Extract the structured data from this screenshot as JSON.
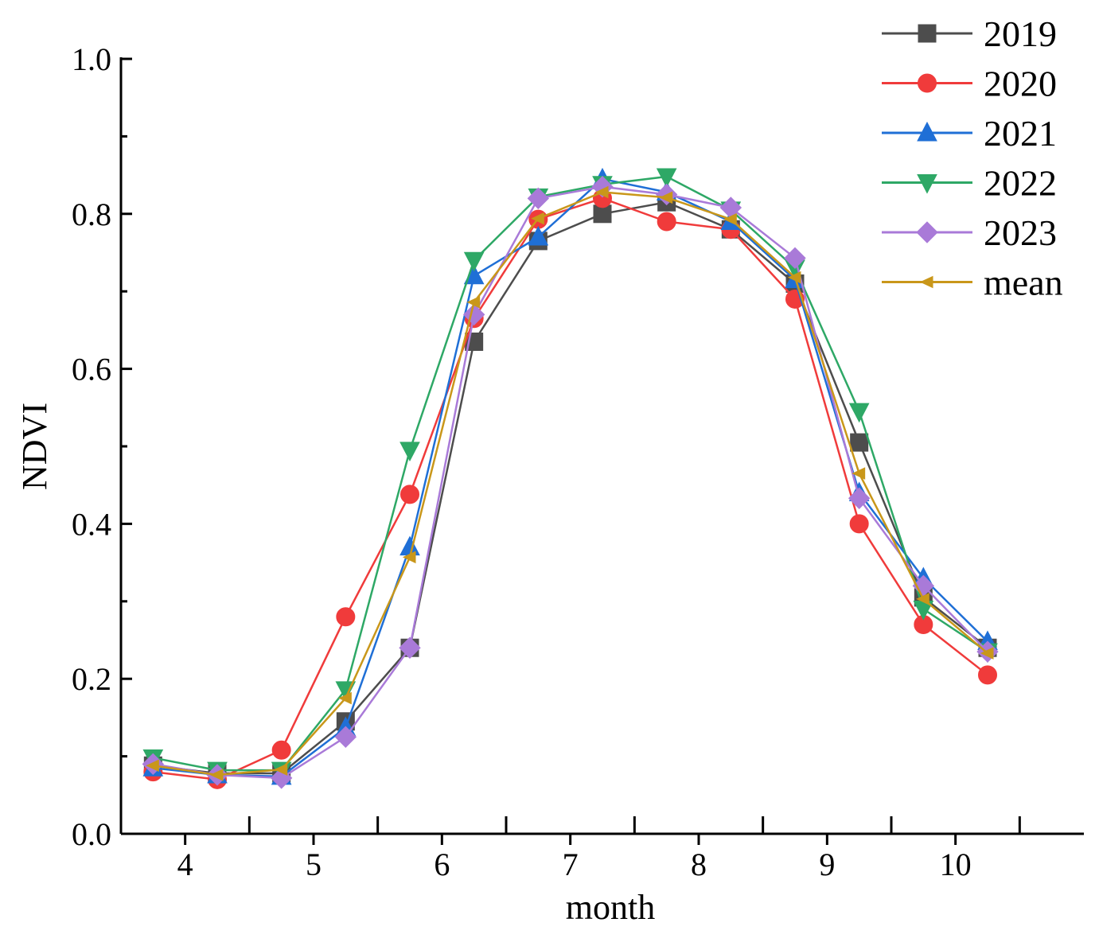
{
  "chart_data": {
    "type": "line",
    "title": "",
    "xlabel": "month",
    "ylabel": "NDVI",
    "xlim": [
      3.5,
      11.0
    ],
    "ylim": [
      0.0,
      1.0
    ],
    "xticks": [
      4,
      5,
      6,
      7,
      8,
      9,
      10
    ],
    "xtick_labels": [
      "4",
      "5",
      "6",
      "7",
      "8",
      "9",
      "10"
    ],
    "yticks": [
      0.0,
      0.2,
      0.4,
      0.6,
      0.8,
      1.0
    ],
    "ytick_labels": [
      "0.0",
      "0.2",
      "0.4",
      "0.6",
      "0.8",
      "1.0"
    ],
    "grid": false,
    "legend_position": "top-right",
    "x": [
      3.75,
      4.25,
      4.75,
      5.25,
      5.75,
      6.25,
      6.75,
      7.25,
      7.75,
      8.25,
      8.75,
      9.25,
      9.75,
      10.25
    ],
    "series": [
      {
        "name": "2019",
        "color": "#4d4d4d",
        "marker": "square",
        "values": [
          0.088,
          0.078,
          0.078,
          0.145,
          0.24,
          0.635,
          0.765,
          0.8,
          0.815,
          0.78,
          0.71,
          0.505,
          0.305,
          0.24
        ]
      },
      {
        "name": "2020",
        "color": "#f03b3b",
        "marker": "circle",
        "values": [
          0.08,
          0.07,
          0.108,
          0.28,
          0.438,
          0.665,
          0.793,
          0.82,
          0.79,
          0.78,
          0.69,
          0.4,
          0.27,
          0.205
        ]
      },
      {
        "name": "2021",
        "color": "#1f6fd6",
        "marker": "triangle-up",
        "values": [
          0.085,
          0.076,
          0.074,
          0.137,
          0.37,
          0.72,
          0.77,
          0.845,
          0.828,
          0.79,
          0.715,
          0.44,
          0.33,
          0.248
        ]
      },
      {
        "name": "2022",
        "color": "#2ea866",
        "marker": "triangle-down",
        "values": [
          0.098,
          0.082,
          0.082,
          0.186,
          0.495,
          0.74,
          0.822,
          0.838,
          0.848,
          0.805,
          0.73,
          0.545,
          0.29,
          0.235
        ]
      },
      {
        "name": "2023",
        "color": "#a97ad8",
        "marker": "diamond",
        "values": [
          0.09,
          0.076,
          0.072,
          0.125,
          0.24,
          0.67,
          0.82,
          0.835,
          0.825,
          0.808,
          0.743,
          0.433,
          0.32,
          0.235
        ]
      },
      {
        "name": "mean",
        "color": "#c9971a",
        "marker": "triangle-left",
        "values": [
          0.088,
          0.076,
          0.083,
          0.175,
          0.357,
          0.686,
          0.794,
          0.828,
          0.821,
          0.793,
          0.718,
          0.465,
          0.303,
          0.233
        ]
      }
    ]
  }
}
